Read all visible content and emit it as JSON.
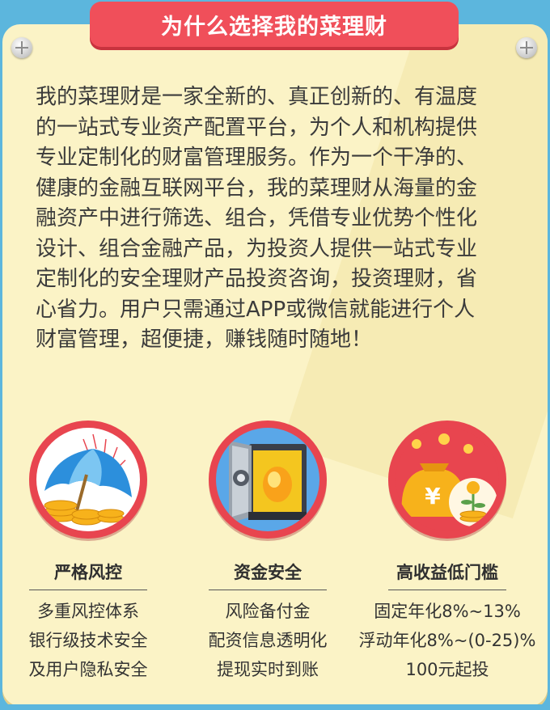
{
  "title": "为什么选择我的菜理财",
  "intro_lines": [
    "我的菜理财是一家全新的、真正创新的、有温度",
    "的一站式专业资产配置平台，为个人和机构提供",
    "专业定制化的财富管理服务。作为一个干净的、",
    "健康的金融互联网平台，我的菜理财从海量的金",
    "融资产中进行筛选、组合，凭借专业优势个性化",
    "设计、组合金融产品，为投资人提供一站式专业",
    "定制化的安全理财产品投资咨询，投资理财，省",
    "心省力。用户只需通过APP或微信就能进行个人",
    "财富管理，超便捷，赚钱随时随地！"
  ],
  "features": [
    {
      "icon": "umbrella-icon",
      "title": "严格风控",
      "lines": [
        "多重风控体系",
        "银行级技术安全",
        "及用户隐私安全"
      ]
    },
    {
      "icon": "safe-icon",
      "title": "资金安全",
      "lines": [
        "风险备付金",
        "配资信息透明化",
        "提现实时到账"
      ]
    },
    {
      "icon": "money-bag-icon",
      "title": "高收益低门槛",
      "lines": [
        "固定年化8%~13%",
        "浮动年化8%~(0-25)%",
        "100元起投"
      ]
    }
  ],
  "colors": {
    "background": "#5cb6dd",
    "panel": "#fbf3c6",
    "banner": "#f04f5a",
    "badge": "#e8454f"
  }
}
